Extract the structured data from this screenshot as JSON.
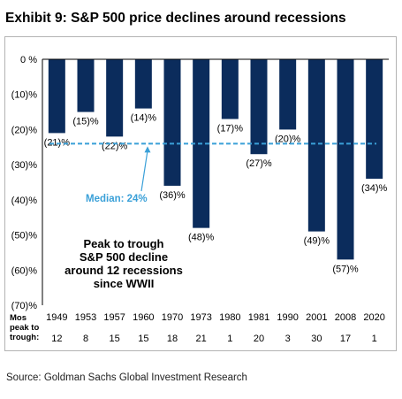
{
  "title": "Exhibit 9: S&P 500 price declines around recessions",
  "source": "Source: Goldman Sachs Global Investment Research",
  "colors": {
    "bar": "#0b2c5c",
    "median": "#3aa0d8",
    "axis": "#000000",
    "frame": "#b3b3b3"
  },
  "chart_data": {
    "type": "bar",
    "categories": [
      "1949",
      "1953",
      "1957",
      "1960",
      "1970",
      "1973",
      "1980",
      "1981",
      "1990",
      "2001",
      "2008",
      "2020"
    ],
    "values": [
      -21,
      -15,
      -22,
      -14,
      -36,
      -48,
      -17,
      -27,
      -20,
      -49,
      -57,
      -34
    ],
    "value_labels": [
      "(21)%",
      "(15)%",
      "(22)%",
      "(14)%",
      "(36)%",
      "(48)%",
      "(17)%",
      "(27)%",
      "(20)%",
      "(49)%",
      "(57)%",
      "(34)%"
    ],
    "ylim": [
      -70,
      0
    ],
    "yticks": [
      0,
      -10,
      -20,
      -30,
      -40,
      -50,
      -60,
      -70
    ],
    "ytick_labels": [
      "0 %",
      "(10)%",
      "(20)%",
      "(30)%",
      "(40)%",
      "(50)%",
      "(60)%",
      "(70)%"
    ],
    "median": {
      "value": -24,
      "label": "Median: 24%"
    },
    "annotation": [
      "Peak to trough",
      "S&P 500 decline",
      "around 12 recessions",
      "since WWII"
    ],
    "months_row": {
      "label": [
        "Mos",
        "peak to",
        "trough:"
      ],
      "values": [
        12,
        8,
        15,
        15,
        18,
        21,
        1,
        20,
        3,
        30,
        17,
        1
      ]
    }
  }
}
